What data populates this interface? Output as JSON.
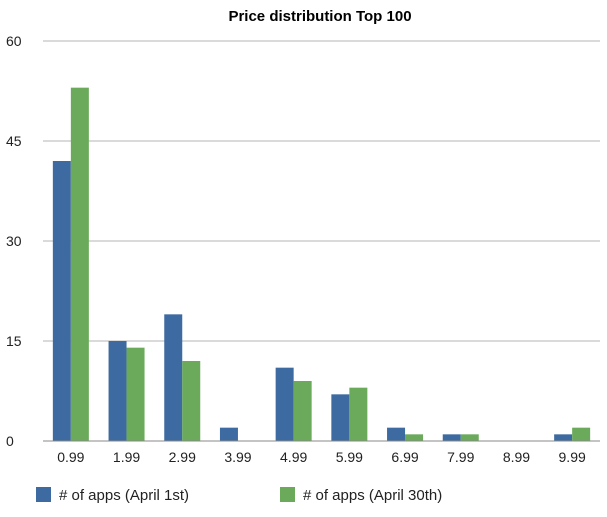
{
  "chart_data": {
    "type": "bar",
    "title": "Price distribution Top 100",
    "xlabel": "",
    "ylabel": "",
    "categories": [
      "0.99",
      "1.99",
      "2.99",
      "3.99",
      "4.99",
      "5.99",
      "6.99",
      "7.99",
      "8.99",
      "9.99"
    ],
    "series": [
      {
        "name": "# of apps (April 1st)",
        "color": "#3d6aa1",
        "values": [
          42,
          15,
          19,
          2,
          11,
          7,
          2,
          1,
          0,
          1
        ]
      },
      {
        "name": "# of apps (April 30th)",
        "color": "#6aaa5a",
        "values": [
          53,
          14,
          12,
          0,
          9,
          8,
          1,
          1,
          0,
          2
        ]
      }
    ],
    "ylim": [
      0,
      60
    ],
    "yticks": [
      "0",
      "15",
      "30",
      "45",
      "60"
    ],
    "grid": true,
    "legend_position": "bottom"
  }
}
